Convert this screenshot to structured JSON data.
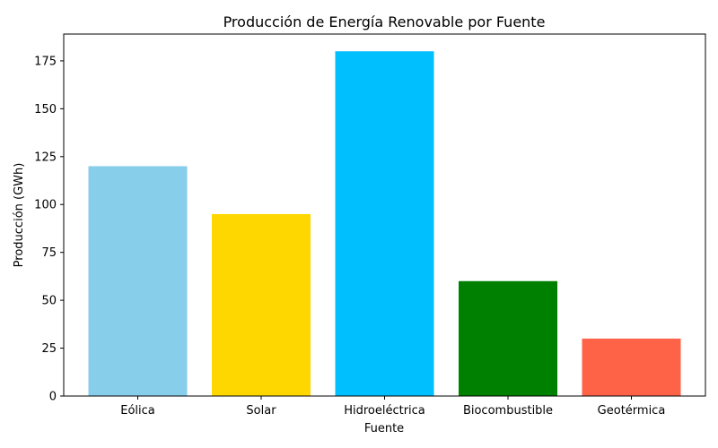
{
  "chart_data": {
    "type": "bar",
    "title": "Producción de Energía Renovable por Fuente",
    "xlabel": "Fuente",
    "ylabel": "Producción (GWh)",
    "categories": [
      "Eólica",
      "Solar",
      "Hidroeléctrica",
      "Biocombustible",
      "Geotérmica"
    ],
    "values": [
      120,
      95,
      180,
      60,
      30
    ],
    "colors": [
      "#87ceeb",
      "#ffd700",
      "#00bfff",
      "#008000",
      "#ff6347"
    ],
    "ylim": [
      0,
      189
    ],
    "yticks": [
      0,
      25,
      50,
      75,
      100,
      125,
      150,
      175
    ],
    "grid": false,
    "legend": "none"
  }
}
